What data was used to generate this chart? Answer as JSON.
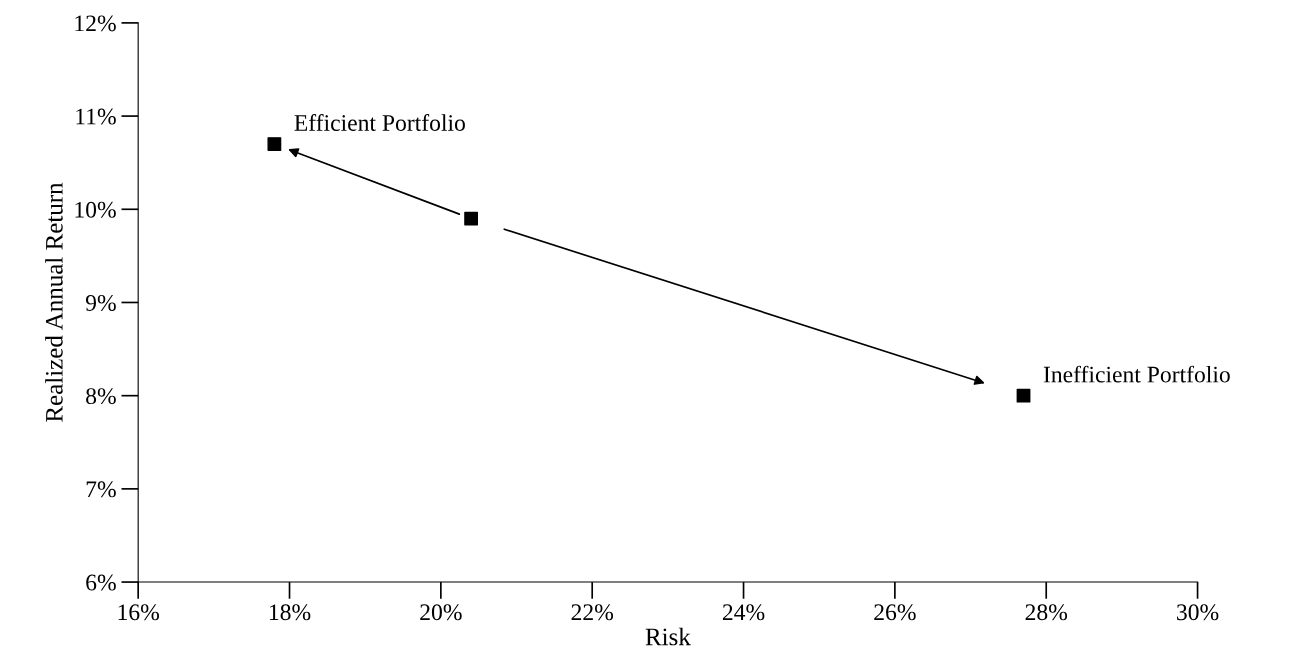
{
  "chart_data": {
    "type": "scatter",
    "xlabel": "Risk",
    "ylabel": "Realized Annual Return",
    "x": [
      17.8,
      20.4,
      27.7
    ],
    "series": [
      {
        "color": "#000000",
        "values": [
          10.7,
          9.9,
          8.0
        ]
      }
    ],
    "marker": "square",
    "xlim": [
      16,
      30
    ],
    "ylim": [
      6,
      12
    ],
    "xticks": [
      {
        "value": 16,
        "label": "16%"
      },
      {
        "value": 18,
        "label": "18%"
      },
      {
        "value": 20,
        "label": "20%"
      },
      {
        "value": 22,
        "label": "22%"
      },
      {
        "value": 24,
        "label": "24%"
      },
      {
        "value": 26,
        "label": "26%"
      },
      {
        "value": 28,
        "label": "28%"
      },
      {
        "value": 30,
        "label": "30%"
      }
    ],
    "yticks": [
      {
        "value": 6,
        "label": "6%"
      },
      {
        "value": 7,
        "label": "7%"
      },
      {
        "value": 8,
        "label": "8%"
      },
      {
        "value": 9,
        "label": "9%"
      },
      {
        "value": 10,
        "label": "10%"
      },
      {
        "value": 11,
        "label": "11%"
      },
      {
        "value": 12,
        "label": "12%"
      }
    ],
    "annotations": [
      {
        "text": "Efficient Portfolio",
        "x": 17.8,
        "y": 10.7
      },
      {
        "text": "Inefficient Portfolio",
        "x": 27.7,
        "y": 8.0
      }
    ]
  }
}
